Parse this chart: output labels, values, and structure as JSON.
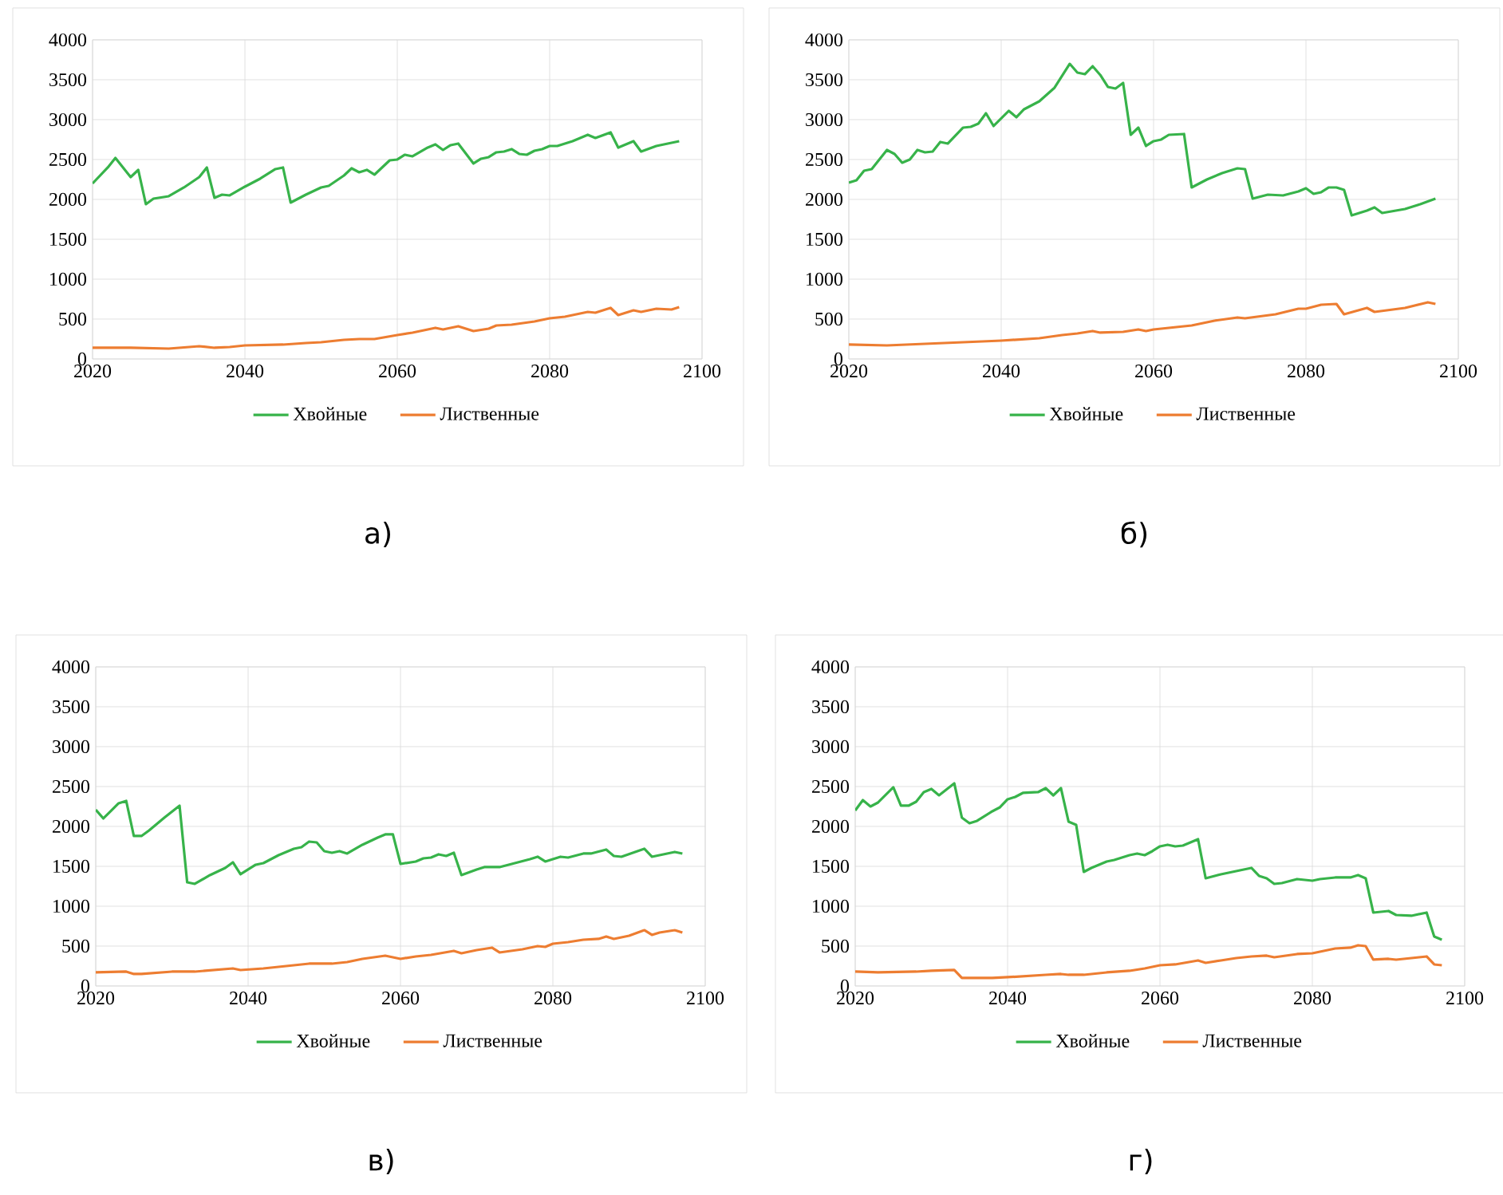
{
  "chart_data": [
    {
      "type": "line",
      "xlim": [
        2020,
        2100
      ],
      "ylim": [
        0,
        4000
      ],
      "xticks": [
        2020,
        2040,
        2060,
        2080,
        2100
      ],
      "yticks": [
        0,
        500,
        1000,
        1500,
        2000,
        2500,
        3000,
        3500,
        4000
      ],
      "grid": true,
      "legend": "bottom",
      "annotations": [
        "а)"
      ],
      "series": [
        {
          "name": "Хвойные",
          "color": "#37b34a",
          "x": [
            2020,
            2022,
            2023,
            2025,
            2026,
            2027,
            2028,
            2030,
            2032,
            2034,
            2035,
            2036,
            2037,
            2038,
            2040,
            2042,
            2044,
            2045,
            2046,
            2048,
            2050,
            2051,
            2053,
            2054,
            2055,
            2056,
            2057,
            2059,
            2060,
            2061,
            2062,
            2064,
            2065,
            2066,
            2067,
            2068,
            2070,
            2071,
            2072,
            2073,
            2074,
            2075,
            2076,
            2077,
            2078,
            2079,
            2080,
            2081,
            2083,
            2085,
            2086,
            2088,
            2089,
            2091,
            2092,
            2094,
            2097
          ],
          "values": [
            2200,
            2400,
            2520,
            2280,
            2370,
            1940,
            2010,
            2040,
            2150,
            2280,
            2400,
            2020,
            2060,
            2050,
            2160,
            2260,
            2380,
            2400,
            1960,
            2060,
            2150,
            2170,
            2300,
            2390,
            2340,
            2370,
            2310,
            2490,
            2500,
            2560,
            2540,
            2650,
            2690,
            2620,
            2680,
            2700,
            2450,
            2510,
            2530,
            2590,
            2600,
            2630,
            2570,
            2560,
            2610,
            2630,
            2670,
            2670,
            2730,
            2810,
            2770,
            2840,
            2650,
            2730,
            2600,
            2670,
            2730
          ]
        },
        {
          "name": "Лиственные",
          "color": "#ed7d31",
          "x": [
            2020,
            2025,
            2030,
            2034,
            2036,
            2038,
            2040,
            2045,
            2048,
            2050,
            2053,
            2055,
            2057,
            2060,
            2062,
            2065,
            2066,
            2068,
            2070,
            2072,
            2073,
            2075,
            2078,
            2080,
            2082,
            2085,
            2086,
            2088,
            2089,
            2091,
            2092,
            2094,
            2096,
            2097
          ],
          "values": [
            140,
            140,
            130,
            160,
            140,
            150,
            170,
            180,
            200,
            210,
            240,
            250,
            250,
            300,
            330,
            390,
            370,
            410,
            350,
            380,
            420,
            430,
            470,
            510,
            530,
            590,
            580,
            640,
            550,
            610,
            590,
            630,
            620,
            650
          ]
        }
      ]
    },
    {
      "type": "line",
      "xlim": [
        2020,
        2100
      ],
      "ylim": [
        0,
        4000
      ],
      "xticks": [
        2020,
        2040,
        2060,
        2080,
        2100
      ],
      "yticks": [
        0,
        500,
        1000,
        1500,
        2000,
        2500,
        3000,
        3500,
        4000
      ],
      "grid": true,
      "legend": "bottom",
      "annotations": [
        "б)"
      ],
      "series": [
        {
          "name": "Хвойные",
          "color": "#37b34a",
          "x": [
            2020,
            2021,
            2022,
            2023,
            2025,
            2026,
            2027,
            2028,
            2029,
            2030,
            2031,
            2032,
            2033,
            2035,
            2036,
            2037,
            2038,
            2039,
            2041,
            2042,
            2043,
            2045,
            2047,
            2049,
            2050,
            2051,
            2052,
            2053,
            2054,
            2055,
            2056,
            2057,
            2058,
            2059,
            2060,
            2061,
            2062,
            2064,
            2065,
            2067,
            2069,
            2071,
            2072,
            2073,
            2075,
            2077,
            2079,
            2080,
            2081,
            2082,
            2083,
            2084,
            2085,
            2086,
            2088,
            2089,
            2090,
            2093,
            2095,
            2097
          ],
          "values": [
            2210,
            2240,
            2360,
            2380,
            2620,
            2570,
            2460,
            2500,
            2620,
            2590,
            2600,
            2720,
            2700,
            2900,
            2910,
            2950,
            3080,
            2920,
            3110,
            3030,
            3130,
            3230,
            3400,
            3700,
            3590,
            3570,
            3670,
            3560,
            3410,
            3390,
            3460,
            2810,
            2900,
            2670,
            2730,
            2750,
            2810,
            2820,
            2150,
            2250,
            2330,
            2390,
            2380,
            2010,
            2060,
            2050,
            2100,
            2140,
            2070,
            2090,
            2150,
            2150,
            2120,
            1800,
            1860,
            1900,
            1830,
            1880,
            1940,
            2010
          ]
        },
        {
          "name": "Лиственные",
          "color": "#ed7d31",
          "x": [
            2020,
            2025,
            2030,
            2035,
            2040,
            2045,
            2048,
            2050,
            2052,
            2053,
            2056,
            2058,
            2059,
            2060,
            2062,
            2065,
            2068,
            2071,
            2072,
            2076,
            2079,
            2080,
            2082,
            2084,
            2085,
            2088,
            2089,
            2093,
            2096,
            2097
          ],
          "values": [
            180,
            170,
            190,
            210,
            230,
            260,
            300,
            320,
            350,
            330,
            340,
            370,
            350,
            370,
            390,
            420,
            480,
            520,
            510,
            560,
            630,
            630,
            680,
            690,
            560,
            640,
            590,
            640,
            710,
            690
          ]
        }
      ]
    },
    {
      "type": "line",
      "xlim": [
        2020,
        2100
      ],
      "ylim": [
        0,
        4000
      ],
      "xticks": [
        2020,
        2040,
        2060,
        2080,
        2100
      ],
      "yticks": [
        0,
        500,
        1000,
        1500,
        2000,
        2500,
        3000,
        3500,
        4000
      ],
      "grid": true,
      "legend": "bottom",
      "annotations": [
        "в)"
      ],
      "series": [
        {
          "name": "Хвойные",
          "color": "#37b34a",
          "x": [
            2020,
            2021,
            2023,
            2024,
            2025,
            2026,
            2027,
            2029,
            2031,
            2032,
            2033,
            2035,
            2037,
            2038,
            2039,
            2041,
            2042,
            2044,
            2046,
            2047,
            2048,
            2049,
            2050,
            2051,
            2052,
            2053,
            2055,
            2057,
            2058,
            2059,
            2060,
            2062,
            2063,
            2064,
            2065,
            2066,
            2067,
            2068,
            2070,
            2071,
            2073,
            2075,
            2077,
            2078,
            2079,
            2081,
            2082,
            2084,
            2085,
            2087,
            2088,
            2089,
            2092,
            2093,
            2095,
            2096,
            2097
          ],
          "values": [
            2210,
            2100,
            2290,
            2320,
            1880,
            1880,
            1950,
            2110,
            2260,
            1300,
            1280,
            1390,
            1480,
            1550,
            1400,
            1520,
            1540,
            1640,
            1720,
            1740,
            1810,
            1800,
            1690,
            1670,
            1690,
            1660,
            1770,
            1860,
            1900,
            1900,
            1530,
            1560,
            1600,
            1610,
            1650,
            1630,
            1670,
            1390,
            1460,
            1490,
            1490,
            1540,
            1590,
            1620,
            1560,
            1620,
            1610,
            1660,
            1660,
            1710,
            1630,
            1620,
            1720,
            1620,
            1660,
            1680,
            1660
          ]
        },
        {
          "name": "Лиственные",
          "color": "#ed7d31",
          "x": [
            2020,
            2024,
            2025,
            2026,
            2030,
            2033,
            2038,
            2039,
            2042,
            2045,
            2048,
            2051,
            2053,
            2055,
            2058,
            2060,
            2062,
            2064,
            2067,
            2068,
            2070,
            2072,
            2073,
            2076,
            2078,
            2079,
            2080,
            2082,
            2084,
            2086,
            2087,
            2088,
            2090,
            2092,
            2093,
            2094,
            2096,
            2097
          ],
          "values": [
            170,
            180,
            150,
            150,
            180,
            180,
            220,
            200,
            220,
            250,
            280,
            280,
            300,
            340,
            380,
            340,
            370,
            390,
            440,
            410,
            450,
            480,
            420,
            460,
            500,
            490,
            530,
            550,
            580,
            590,
            620,
            590,
            630,
            700,
            640,
            670,
            700,
            670
          ]
        }
      ]
    },
    {
      "type": "line",
      "xlim": [
        2020,
        2100
      ],
      "ylim": [
        0,
        4000
      ],
      "xticks": [
        2020,
        2040,
        2060,
        2080,
        2100
      ],
      "yticks": [
        0,
        500,
        1000,
        1500,
        2000,
        2500,
        3000,
        3500,
        4000
      ],
      "grid": true,
      "legend": "bottom",
      "annotations": [
        "г)"
      ],
      "series": [
        {
          "name": "Хвойные",
          "color": "#37b34a",
          "x": [
            2020,
            2021,
            2022,
            2023,
            2025,
            2026,
            2027,
            2028,
            2029,
            2030,
            2031,
            2033,
            2034,
            2035,
            2036,
            2038,
            2039,
            2040,
            2041,
            2042,
            2044,
            2045,
            2046,
            2047,
            2048,
            2049,
            2050,
            2051,
            2053,
            2054,
            2056,
            2057,
            2058,
            2059,
            2060,
            2061,
            2062,
            2063,
            2065,
            2066,
            2068,
            2070,
            2072,
            2073,
            2074,
            2075,
            2076,
            2078,
            2080,
            2081,
            2083,
            2085,
            2086,
            2087,
            2088,
            2090,
            2091,
            2093,
            2095,
            2096,
            2097
          ],
          "values": [
            2200,
            2330,
            2250,
            2300,
            2490,
            2260,
            2260,
            2310,
            2430,
            2470,
            2390,
            2540,
            2110,
            2040,
            2070,
            2190,
            2240,
            2340,
            2370,
            2420,
            2430,
            2480,
            2390,
            2480,
            2060,
            2020,
            1430,
            1480,
            1560,
            1580,
            1640,
            1660,
            1640,
            1690,
            1750,
            1770,
            1750,
            1760,
            1840,
            1350,
            1400,
            1440,
            1480,
            1380,
            1350,
            1280,
            1290,
            1340,
            1320,
            1340,
            1360,
            1360,
            1390,
            1350,
            920,
            940,
            890,
            880,
            920,
            620,
            580
          ]
        },
        {
          "name": "Лиственные",
          "color": "#ed7d31",
          "x": [
            2020,
            2023,
            2028,
            2030,
            2033,
            2034,
            2038,
            2040,
            2045,
            2047,
            2048,
            2050,
            2053,
            2056,
            2058,
            2060,
            2062,
            2065,
            2066,
            2068,
            2070,
            2072,
            2074,
            2075,
            2078,
            2080,
            2083,
            2085,
            2086,
            2087,
            2088,
            2090,
            2091,
            2094,
            2095,
            2096,
            2097
          ],
          "values": [
            180,
            170,
            180,
            190,
            200,
            100,
            100,
            110,
            140,
            150,
            140,
            140,
            170,
            190,
            220,
            260,
            270,
            320,
            290,
            320,
            350,
            370,
            380,
            360,
            400,
            410,
            470,
            480,
            510,
            500,
            330,
            340,
            330,
            360,
            370,
            270,
            260
          ]
        }
      ]
    }
  ]
}
